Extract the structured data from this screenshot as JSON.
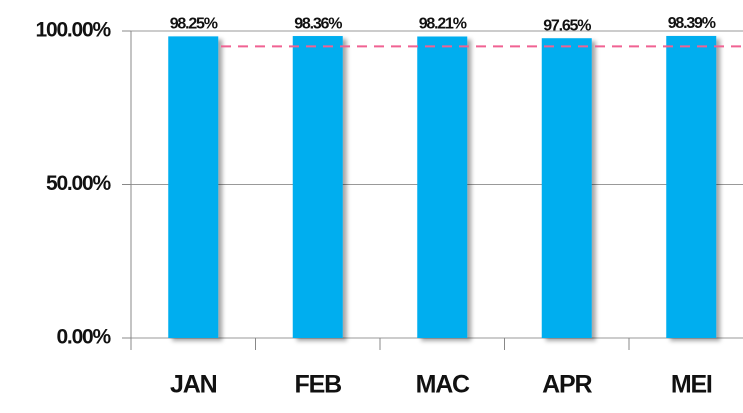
{
  "chart_data": {
    "type": "bar",
    "categories": [
      "JAN",
      "FEB",
      "MAC",
      "APR",
      "MEI"
    ],
    "values": [
      98.25,
      98.36,
      98.21,
      97.65,
      98.39
    ],
    "value_labels": [
      "98.25%",
      "98.36%",
      "98.21%",
      "97.65%",
      "98.39%"
    ],
    "color": "#00aeef",
    "ylim": [
      0,
      100
    ],
    "yticks": [
      {
        "value": 0,
        "label": "0.00%"
      },
      {
        "value": 50,
        "label": "50.00%"
      },
      {
        "value": 100,
        "label": "100.00%"
      }
    ],
    "grid": true,
    "reference_line": {
      "value": 95,
      "color": "#f06292"
    }
  }
}
